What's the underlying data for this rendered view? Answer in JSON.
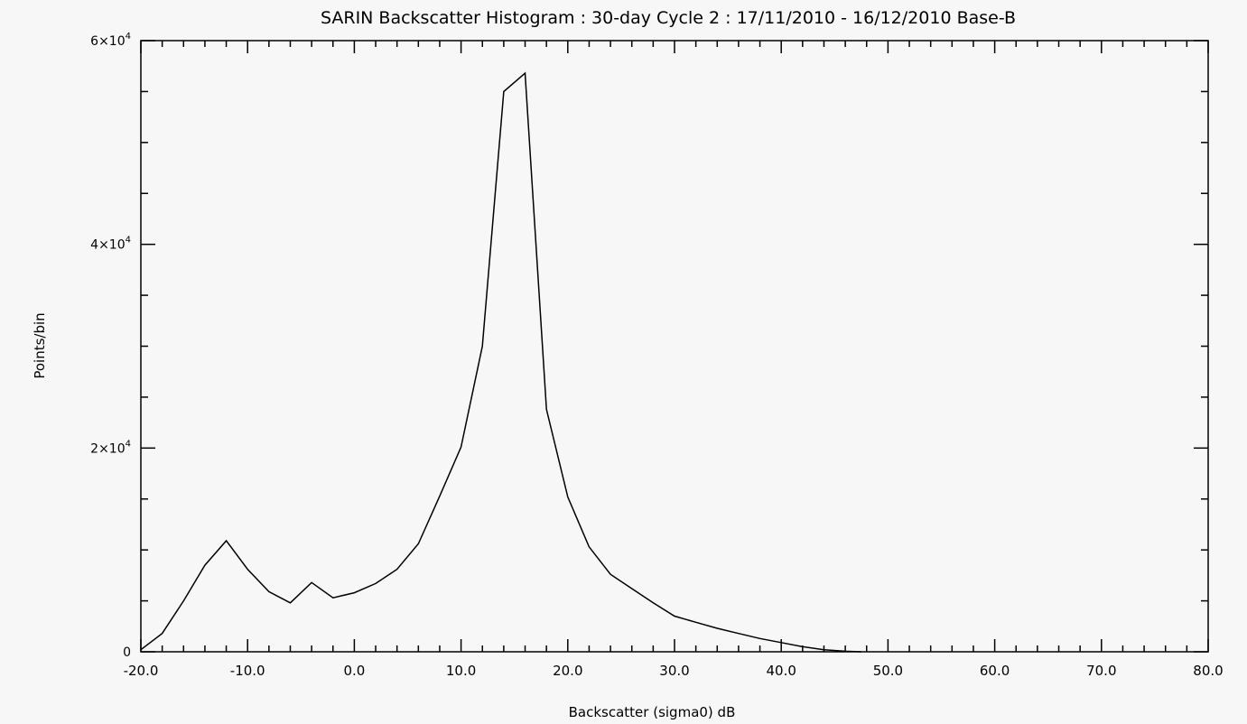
{
  "chart_data": {
    "type": "line",
    "title": "SARIN Backscatter Histogram : 30-day Cycle 2 : 17/11/2010 - 16/12/2010 Base-B",
    "xlabel": "Backscatter (sigma0) dB",
    "ylabel": "Points/bin",
    "xlim": [
      -20,
      80
    ],
    "ylim": [
      0,
      60000
    ],
    "x_ticks": [
      -20,
      -10,
      0,
      10,
      20,
      30,
      40,
      50,
      60,
      70,
      80
    ],
    "x_tick_labels": [
      "-20.0",
      "-10.0",
      "0.0",
      "10.0",
      "20.0",
      "30.0",
      "40.0",
      "50.0",
      "60.0",
      "70.0",
      "80.0"
    ],
    "y_ticks": [
      {
        "value": 0,
        "mantissa": "0",
        "exponent": ""
      },
      {
        "value": 20000,
        "mantissa": "2×10",
        "exponent": "4"
      },
      {
        "value": 40000,
        "mantissa": "4×10",
        "exponent": "4"
      },
      {
        "value": 60000,
        "mantissa": "6×10",
        "exponent": "4"
      }
    ],
    "x_minor_step": 2,
    "y_minor_step": 5000,
    "grid": false,
    "series": [
      {
        "x": [
          -20,
          -18,
          -16,
          -14,
          -12,
          -10,
          -8,
          -6,
          -4,
          -2,
          0,
          2,
          4,
          6,
          8,
          10,
          12,
          14,
          16,
          18,
          20,
          22,
          24,
          26,
          28,
          30,
          32,
          34,
          36,
          38,
          40,
          42,
          44,
          46,
          47.5
        ],
        "y": [
          200,
          1800,
          5000,
          8500,
          10900,
          8100,
          5900,
          4800,
          6800,
          5300,
          5800,
          6700,
          8100,
          10600,
          15300,
          20100,
          30000,
          55000,
          56800,
          23800,
          15200,
          10300,
          7600,
          6200,
          4800,
          3500,
          2900,
          2300,
          1800,
          1300,
          900,
          500,
          200,
          50,
          0
        ]
      }
    ]
  }
}
